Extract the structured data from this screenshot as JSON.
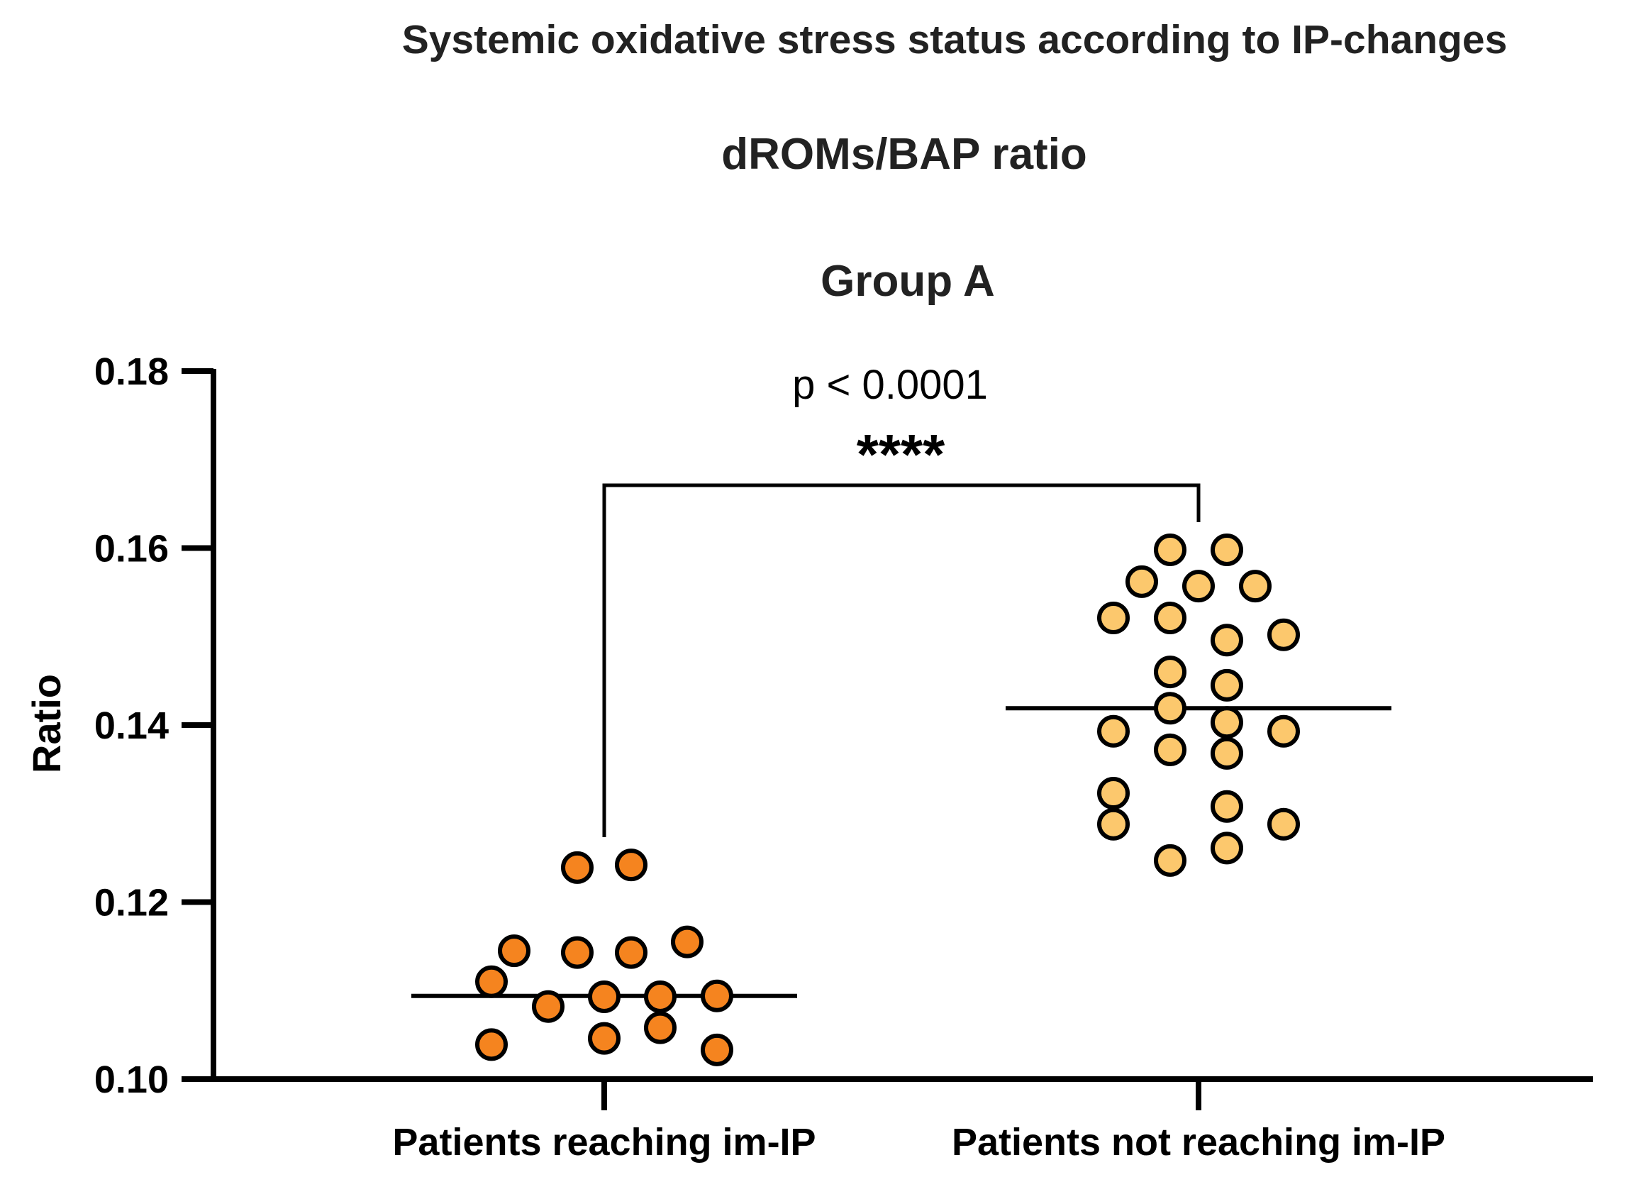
{
  "chart_data": {
    "type": "scatter",
    "title": "Systemic oxidative stress status according to IP-changes",
    "subtitle": "dROMs/BAP ratio",
    "panel_title": "Group A",
    "ylabel": "Ratio",
    "xlabel": "",
    "ylim": [
      0.1,
      0.18
    ],
    "yticks": [
      0.1,
      0.12,
      0.14,
      0.16,
      0.18
    ],
    "ytick_labels": [
      "0.10",
      "0.12",
      "0.14",
      "0.16",
      "0.18"
    ],
    "categories": [
      "Patients reaching im-IP",
      "Patients not reaching im-IP"
    ],
    "grid": false,
    "series": [
      {
        "name": "Patients reaching im-IP",
        "color": "#F5841F",
        "median": 0.1094,
        "values": [
          0.1239,
          0.1242,
          0.1145,
          0.1143,
          0.1143,
          0.1155,
          0.111,
          0.1082,
          0.1093,
          0.1093,
          0.1094,
          0.1039,
          0.1046,
          0.1058,
          0.1033
        ]
      },
      {
        "name": "Patients not reaching im-IP",
        "color": "#FCC86D",
        "median": 0.1419,
        "values": [
          0.1598,
          0.1598,
          0.1562,
          0.1557,
          0.1557,
          0.1521,
          0.1521,
          0.1496,
          0.1502,
          0.146,
          0.1445,
          0.1419,
          0.1403,
          0.1393,
          0.1393,
          0.1372,
          0.1368,
          0.1323,
          0.1308,
          0.1288,
          0.1288,
          0.1261,
          0.1247
        ]
      }
    ],
    "annotation": {
      "p_value": "p < 0.0001",
      "stars": "****"
    }
  }
}
